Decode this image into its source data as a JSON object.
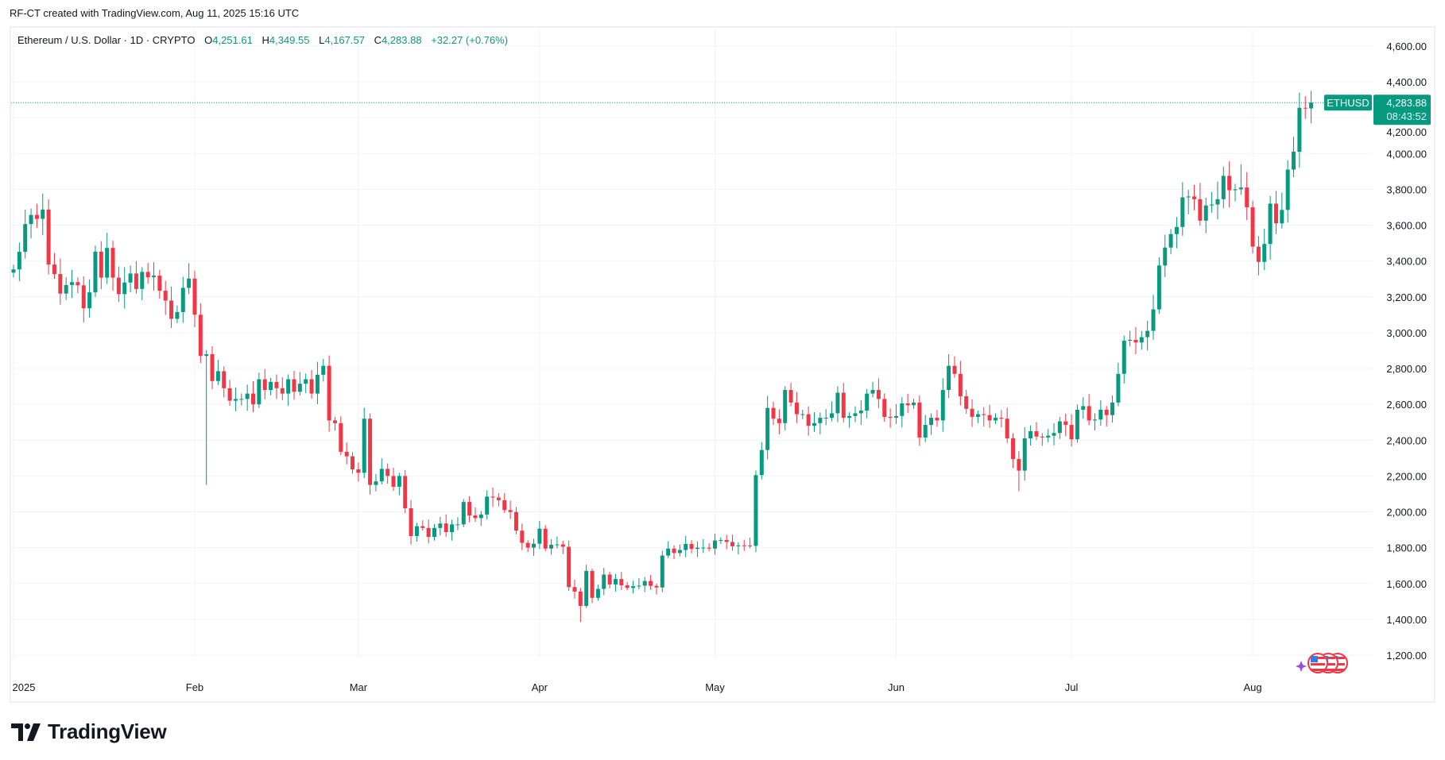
{
  "credit": "RF-CT created with TradingView.com, Aug 11, 2025 15:16 UTC",
  "legend": {
    "symbol": "Ethereum / U.S. Dollar · 1D · CRYPTO",
    "o_label": "O",
    "o": "4,251.61",
    "h_label": "H",
    "h": "4,349.55",
    "l_label": "L",
    "l": "4,167.57",
    "c_label": "C",
    "c": "4,283.88",
    "change": "+32.27 (+0.76%)"
  },
  "price_tag": {
    "symbol": "ETHUSD",
    "price": "4,283.88",
    "countdown": "08:43:52"
  },
  "logo": "TradingView",
  "colors": {
    "up": "#089981",
    "down": "#f23645",
    "grid": "#f0f3fa",
    "event_purple": "#9c4dd6"
  },
  "events_icons": [
    "sparkle-icon",
    "us-flag-icon",
    "us-flag-icon",
    "us-flag-icon"
  ],
  "chart_data": {
    "type": "candlestick",
    "timeframe": "1D",
    "start_date": "2025-01-01",
    "ylim": [
      1100,
      4700
    ],
    "grid": true,
    "price_ticks": [
      1200,
      1400,
      1600,
      1800,
      2000,
      2200,
      2400,
      2600,
      2800,
      3000,
      3200,
      3400,
      3600,
      3800,
      4000,
      4200,
      4400,
      4600
    ],
    "price_tick_labels": [
      "1,200.00",
      "1,400.00",
      "1,600.00",
      "1,800.00",
      "2,000.00",
      "2,200.00",
      "2,400.00",
      "2,600.00",
      "2,800.00",
      "3,000.00",
      "3,200.00",
      "3,400.00",
      "3,600.00",
      "3,800.00",
      "4,000.00",
      "4,200.00",
      "4,400.00",
      "4,600.00"
    ],
    "x_ticks": [
      {
        "label": "2025",
        "day": 0
      },
      {
        "label": "Feb",
        "day": 31
      },
      {
        "label": "Mar",
        "day": 59
      },
      {
        "label": "Apr",
        "day": 90
      },
      {
        "label": "May",
        "day": 120
      },
      {
        "label": "Jun",
        "day": 151
      },
      {
        "label": "Jul",
        "day": 181
      },
      {
        "label": "Aug",
        "day": 212
      }
    ],
    "last_price": 4283.88,
    "first_open": 3335,
    "close": [
      3353,
      3451,
      3606,
      3657,
      3635,
      3687,
      3380,
      3327,
      3218,
      3266,
      3282,
      3264,
      3136,
      3225,
      3452,
      3307,
      3473,
      3307,
      3215,
      3280,
      3330,
      3244,
      3339,
      3309,
      3318,
      3234,
      3179,
      3077,
      3115,
      3250,
      3302,
      3100,
      2870,
      2880,
      2730,
      2785,
      2690,
      2620,
      2630,
      2630,
      2660,
      2600,
      2740,
      2680,
      2725,
      2690,
      2660,
      2740,
      2670,
      2715,
      2740,
      2660,
      2765,
      2815,
      2510,
      2495,
      2335,
      2310,
      2237,
      2218,
      2520,
      2150,
      2170,
      2240,
      2200,
      2140,
      2200,
      2020,
      1865,
      1920,
      1910,
      1860,
      1910,
      1935,
      1887,
      1930,
      1930,
      2055,
      1980,
      1965,
      1985,
      2085,
      2080,
      2065,
      2010,
      1999,
      1895,
      1827,
      1800,
      1822,
      1906,
      1795,
      1816,
      1818,
      1805,
      1580,
      1555,
      1475,
      1670,
      1520,
      1570,
      1650,
      1595,
      1625,
      1590,
      1575,
      1585,
      1588,
      1614,
      1587,
      1578,
      1756,
      1795,
      1770,
      1787,
      1821,
      1793,
      1800,
      1800,
      1795,
      1840,
      1843,
      1832,
      1808,
      1813,
      1812,
      1810,
      2205,
      2345,
      2580,
      2520,
      2495,
      2680,
      2610,
      2545,
      2545,
      2480,
      2495,
      2525,
      2525,
      2550,
      2665,
      2525,
      2535,
      2550,
      2565,
      2660,
      2680,
      2630,
      2530,
      2525,
      2535,
      2605,
      2595,
      2610,
      2415,
      2485,
      2525,
      2510,
      2680,
      2815,
      2770,
      2645,
      2575,
      2530,
      2545,
      2540,
      2510,
      2525,
      2520,
      2410,
      2295,
      2230,
      2410,
      2450,
      2420,
      2415,
      2425,
      2440,
      2505,
      2485,
      2405,
      2570,
      2590,
      2510,
      2515,
      2570,
      2540,
      2610,
      2770,
      2955,
      2960,
      2945,
      2975,
      3010,
      3130,
      3375,
      3475,
      3550,
      3590,
      3755,
      3760,
      3745,
      3625,
      3710,
      3715,
      3745,
      3875,
      3795,
      3800,
      3810,
      3700,
      3480,
      3395,
      3495,
      3720,
      3610,
      3685,
      3910,
      4010,
      4255,
      4251.61,
      4283.88
    ],
    "notable_extremes": [
      {
        "day": 6,
        "high": 3745
      },
      {
        "day": 33,
        "low": 2150
      },
      {
        "day": 97,
        "low": 1385
      },
      {
        "day": 160,
        "high": 2880
      },
      {
        "day": 172,
        "low": 2115
      },
      {
        "day": 210,
        "high": 3940
      },
      {
        "day": 220,
        "high": 4340
      },
      {
        "day": 222,
        "high": 4349.55,
        "low": 4167.57
      }
    ]
  }
}
